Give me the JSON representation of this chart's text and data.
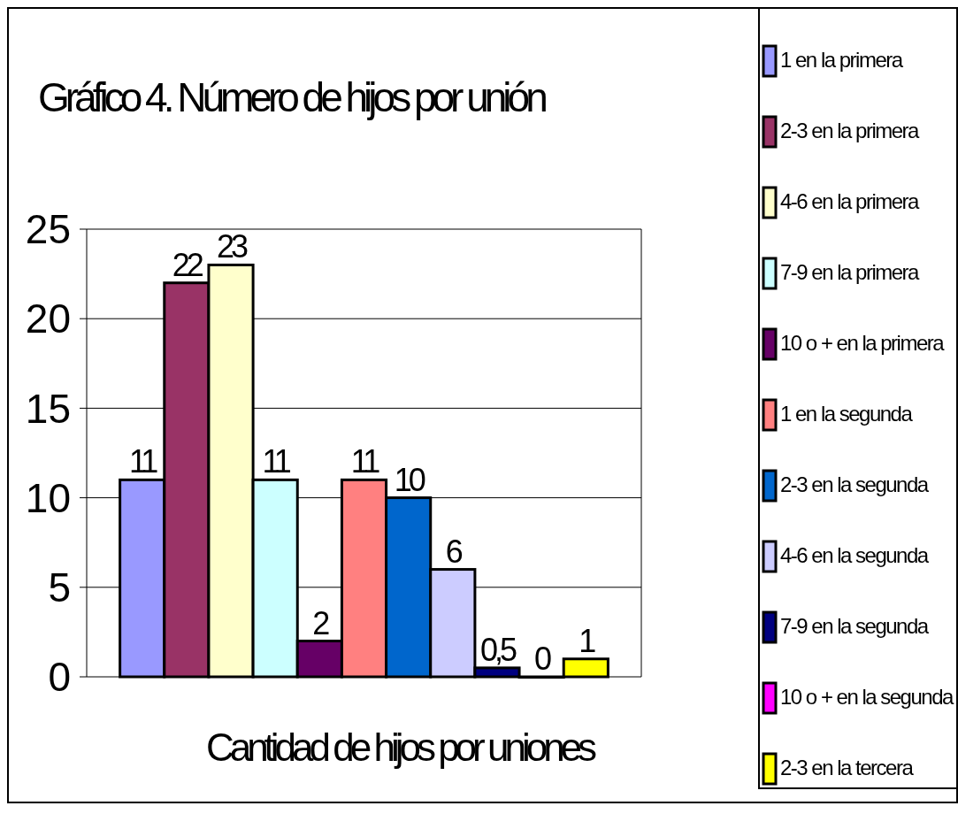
{
  "chart_data": {
    "type": "bar",
    "title": "Gráfico 4. Número de hijos por unión",
    "xlabel": "Cantidad de hijos por uniones",
    "categories": [
      null
    ],
    "series": [
      {
        "name": "1 en la primera",
        "color": "#9999ff",
        "values": [
          11
        ],
        "value_labels": [
          "11"
        ]
      },
      {
        "name": "2-3 en la primera",
        "color": "#993366",
        "values": [
          22
        ],
        "value_labels": [
          "22"
        ]
      },
      {
        "name": "4-6 en la primera",
        "color": "#ffffcc",
        "values": [
          23
        ],
        "value_labels": [
          "23"
        ]
      },
      {
        "name": "7-9 en la primera",
        "color": "#ccffff",
        "values": [
          11
        ],
        "value_labels": [
          "11"
        ]
      },
      {
        "name": "10 o + en la primera",
        "color": "#660066",
        "values": [
          2
        ],
        "value_labels": [
          "2"
        ]
      },
      {
        "name": "1 en la segunda",
        "color": "#ff8080",
        "values": [
          11
        ],
        "value_labels": [
          "11"
        ]
      },
      {
        "name": "2-3 en la segunda",
        "color": "#0066cc",
        "values": [
          10
        ],
        "value_labels": [
          "10"
        ]
      },
      {
        "name": "4-6 en la segunda",
        "color": "#ccccff",
        "values": [
          6
        ],
        "value_labels": [
          "6"
        ]
      },
      {
        "name": "7-9 en la segunda",
        "color": "#000080",
        "values": [
          0.5
        ],
        "value_labels": [
          "0,5"
        ]
      },
      {
        "name": "10 o + en la segunda",
        "color": "#ff00ff",
        "values": [
          0
        ],
        "value_labels": [
          "0"
        ]
      },
      {
        "name": "2-3 en la tercera",
        "color": "#ffff00",
        "values": [
          1
        ],
        "value_labels": [
          "1"
        ]
      }
    ],
    "ylim": [
      0,
      25
    ],
    "yticks": [
      0,
      5,
      10,
      15,
      20,
      25
    ],
    "grid": "y",
    "legend": "right"
  }
}
